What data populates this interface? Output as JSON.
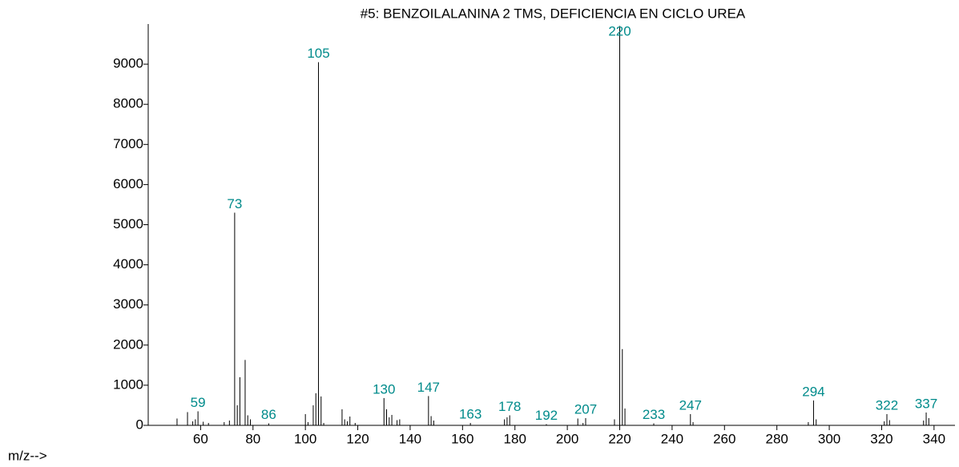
{
  "chart_data": {
    "type": "bar",
    "title": "#5: BENZOILALANINA 2 TMS, DEFICIENCIA EN CICLO UREA",
    "x_label": "m/z-->",
    "color": "#000000",
    "label_color": "#008b8b",
    "x": [
      51,
      55,
      57,
      58,
      59,
      61,
      63,
      69,
      71,
      73,
      74,
      75,
      77,
      78,
      79,
      86,
      100,
      101,
      103,
      104,
      105,
      106,
      107,
      114,
      115,
      116,
      117,
      119,
      130,
      131,
      132,
      133,
      135,
      136,
      147,
      148,
      149,
      163,
      176,
      177,
      178,
      192,
      204,
      206,
      207,
      218,
      220,
      221,
      222,
      233,
      247,
      248,
      292,
      294,
      295,
      321,
      322,
      323,
      336,
      337,
      338
    ],
    "values": [
      170,
      330,
      100,
      150,
      350,
      90,
      60,
      80,
      120,
      5300,
      500,
      1200,
      1630,
      250,
      150,
      50,
      280,
      80,
      500,
      800,
      9050,
      720,
      60,
      400,
      150,
      100,
      220,
      60,
      680,
      400,
      200,
      260,
      130,
      150,
      730,
      230,
      120,
      60,
      150,
      200,
      250,
      30,
      170,
      60,
      180,
      150,
      9950,
      1900,
      420,
      50,
      280,
      80,
      80,
      620,
      150,
      100,
      280,
      130,
      120,
      320,
      180
    ],
    "peak_labels": [
      59,
      73,
      86,
      105,
      130,
      147,
      163,
      178,
      192,
      207,
      220,
      233,
      247,
      294,
      322,
      337
    ],
    "xlim": [
      40,
      348
    ],
    "ylim": [
      0,
      10000
    ],
    "xticks": [
      60,
      80,
      100,
      120,
      140,
      160,
      180,
      200,
      220,
      240,
      260,
      280,
      300,
      320,
      340
    ],
    "yticks": [
      0,
      1000,
      2000,
      3000,
      4000,
      5000,
      6000,
      7000,
      8000,
      9000
    ]
  }
}
